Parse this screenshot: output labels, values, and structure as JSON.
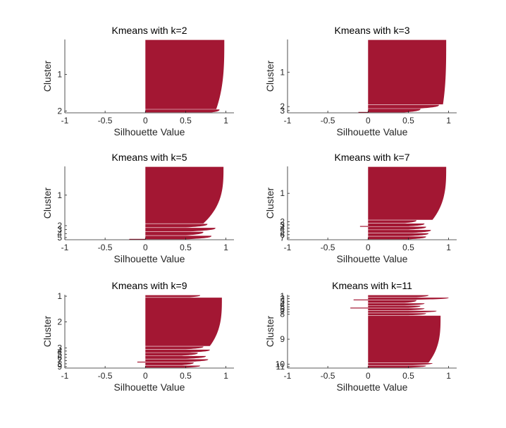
{
  "colors": {
    "bar": "#a31733",
    "axis": "#262626",
    "text": "#262626",
    "background": "#ffffff"
  },
  "chart_data": [
    {
      "type": "bar",
      "orientation": "horizontal",
      "title": "Kmeans with k=2",
      "xlabel": "Silhouette Value",
      "ylabel": "Cluster",
      "xlim": [
        -1,
        1.1
      ],
      "xticks": [
        -1,
        -0.5,
        0,
        0.5,
        1
      ],
      "xtick_labels": [
        "-1",
        "-0.5",
        "0",
        "0.5",
        "1"
      ],
      "clusters": [
        {
          "label": "1",
          "size": 96,
          "max": 0.98,
          "min": 0.88,
          "end_drop": 0.02
        },
        {
          "label": "2",
          "size": 4,
          "max": 0.92,
          "min": 0.82,
          "end_drop": 0.0
        }
      ]
    },
    {
      "type": "bar",
      "orientation": "horizontal",
      "title": "Kmeans with k=3",
      "xlabel": "Silhouette Value",
      "ylabel": "Cluster",
      "xlim": [
        -1,
        1.1
      ],
      "xticks": [
        -1,
        -0.5,
        0,
        0.5,
        1
      ],
      "xtick_labels": [
        "-1",
        "-0.5",
        "0",
        "0.5",
        "1"
      ],
      "clusters": [
        {
          "label": "1",
          "size": 90,
          "max": 0.97,
          "min": 0.93,
          "end_drop": 0.0
        },
        {
          "label": "2",
          "size": 5,
          "max": 0.88,
          "min": 0.65,
          "end_drop": 0.0
        },
        {
          "label": "3",
          "size": 5,
          "max": 0.65,
          "min": 0.45,
          "end_drop": -0.12
        }
      ]
    },
    {
      "type": "bar",
      "orientation": "horizontal",
      "title": "Kmeans with k=5",
      "xlabel": "Silhouette Value",
      "ylabel": "Cluster",
      "xlim": [
        -1,
        1.1
      ],
      "xticks": [
        -1,
        -0.5,
        0,
        0.5,
        1
      ],
      "xtick_labels": [
        "-1",
        "-0.5",
        "0",
        "0.5",
        "1"
      ],
      "clusters": [
        {
          "label": "1",
          "size": 80,
          "max": 0.97,
          "min": 0.72,
          "end_drop": 0.0
        },
        {
          "label": "2",
          "size": 5,
          "max": 0.77,
          "min": 0.5,
          "end_drop": 0.0
        },
        {
          "label": "3",
          "size": 5,
          "max": 0.87,
          "min": 0.55,
          "end_drop": 0.0
        },
        {
          "label": "4",
          "size": 5,
          "max": 0.72,
          "min": 0.5,
          "end_drop": 0.0
        },
        {
          "label": "5",
          "size": 5,
          "max": 0.82,
          "min": 0.5,
          "end_drop": -0.2
        }
      ]
    },
    {
      "type": "bar",
      "orientation": "horizontal",
      "title": "Kmeans with k=7",
      "xlabel": "Silhouette Value",
      "ylabel": "Cluster",
      "xlim": [
        -1,
        1.1
      ],
      "xticks": [
        -1,
        -0.5,
        0,
        0.5,
        1
      ],
      "xtick_labels": [
        "-1",
        "-0.5",
        "0",
        "0.5",
        "1"
      ],
      "clusters": [
        {
          "label": "1",
          "size": 75,
          "max": 0.97,
          "min": 0.8,
          "end_drop": 0.0
        },
        {
          "label": "2",
          "size": 4,
          "max": 0.6,
          "min": 0.45,
          "end_drop": 0.0
        },
        {
          "label": "3",
          "size": 4,
          "max": 0.7,
          "min": 0.5,
          "end_drop": -0.1
        },
        {
          "label": "4",
          "size": 4,
          "max": 0.72,
          "min": 0.5,
          "end_drop": 0.0
        },
        {
          "label": "5",
          "size": 4,
          "max": 0.78,
          "min": 0.55,
          "end_drop": 0.0
        },
        {
          "label": "6",
          "size": 4,
          "max": 0.75,
          "min": 0.5,
          "end_drop": 0.0
        },
        {
          "label": "7",
          "size": 4,
          "max": 0.72,
          "min": 0.5,
          "end_drop": 0.0
        }
      ]
    },
    {
      "type": "bar",
      "orientation": "horizontal",
      "title": "Kmeans with k=9",
      "xlabel": "Silhouette Value",
      "ylabel": "Cluster",
      "xlim": [
        -1,
        1.1
      ],
      "xticks": [
        -1,
        -0.5,
        0,
        0.5,
        1
      ],
      "xtick_labels": [
        "-1",
        "-0.5",
        "0",
        "0.5",
        "1"
      ],
      "clusters": [
        {
          "label": "1",
          "size": 3,
          "max": 0.68,
          "min": 0.55,
          "end_drop": 0.0
        },
        {
          "label": "2",
          "size": 70,
          "max": 0.95,
          "min": 0.8,
          "end_drop": 0.0
        },
        {
          "label": "3",
          "size": 4,
          "max": 0.72,
          "min": 0.5,
          "end_drop": 0.0
        },
        {
          "label": "4",
          "size": 4,
          "max": 0.8,
          "min": 0.55,
          "end_drop": 0.0
        },
        {
          "label": "5",
          "size": 4,
          "max": 0.65,
          "min": 0.45,
          "end_drop": 0.0
        },
        {
          "label": "6",
          "size": 4,
          "max": 0.75,
          "min": 0.5,
          "end_drop": 0.0
        },
        {
          "label": "7",
          "size": 4,
          "max": 0.78,
          "min": 0.5,
          "end_drop": -0.1
        },
        {
          "label": "8",
          "size": 4,
          "max": 0.6,
          "min": 0.45,
          "end_drop": 0.0
        },
        {
          "label": "9",
          "size": 3,
          "max": 0.68,
          "min": 0.5,
          "end_drop": 0.0
        }
      ]
    },
    {
      "type": "bar",
      "orientation": "horizontal",
      "title": "Kmeans with k=11",
      "xlabel": "Silhouette Value",
      "ylabel": "Cluster",
      "xlim": [
        -1,
        1.1
      ],
      "xticks": [
        -1,
        -0.5,
        0,
        0.5,
        1
      ],
      "xtick_labels": [
        "-1",
        "-0.5",
        "0",
        "0.5",
        "1"
      ],
      "clusters": [
        {
          "label": "1",
          "size": 3,
          "max": 0.75,
          "min": 0.6,
          "end_drop": 0.0
        },
        {
          "label": "2",
          "size": 3,
          "max": 1.0,
          "min": 0.6,
          "end_drop": -0.18
        },
        {
          "label": "3",
          "size": 4,
          "max": 0.6,
          "min": 0.45,
          "end_drop": 0.0
        },
        {
          "label": "4",
          "size": 3,
          "max": 0.7,
          "min": 0.45,
          "end_drop": 0.0
        },
        {
          "label": "5",
          "size": 3,
          "max": 0.65,
          "min": 0.5,
          "end_drop": -0.22
        },
        {
          "label": "6",
          "size": 3,
          "max": 0.7,
          "min": 0.5,
          "end_drop": 0.0
        },
        {
          "label": "7",
          "size": 3,
          "max": 0.85,
          "min": 0.5,
          "end_drop": 0.0
        },
        {
          "label": "8",
          "size": 3,
          "max": 0.72,
          "min": 0.5,
          "end_drop": 0.0
        },
        {
          "label": "9",
          "size": 68,
          "max": 0.9,
          "min": 0.75,
          "end_drop": 0.0
        },
        {
          "label": "10",
          "size": 3,
          "max": 0.8,
          "min": 0.55,
          "end_drop": 0.0
        },
        {
          "label": "11",
          "size": 3,
          "max": 0.72,
          "min": 0.5,
          "end_drop": 0.0
        }
      ]
    }
  ]
}
